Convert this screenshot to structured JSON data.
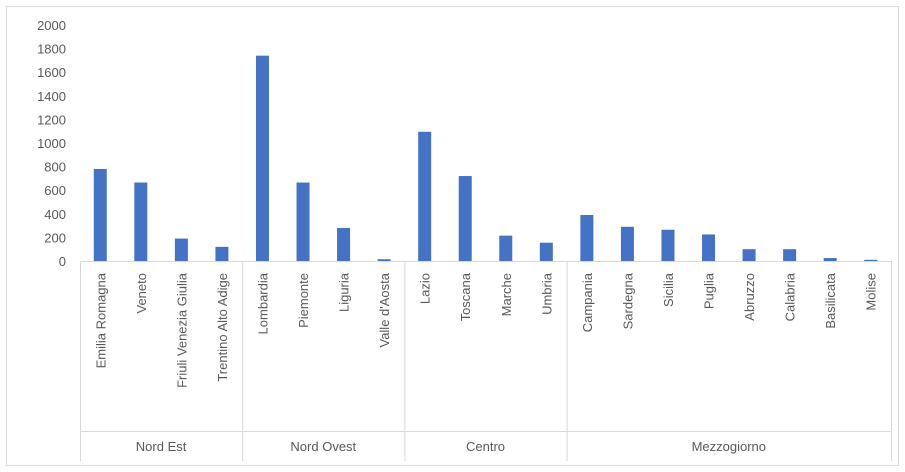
{
  "chart_data": {
    "type": "bar",
    "title": "",
    "xlabel": "",
    "ylabel": "",
    "ylim": [
      0,
      2000
    ],
    "yticks": [
      0,
      200,
      400,
      600,
      800,
      1000,
      1200,
      1400,
      1600,
      1800,
      2000
    ],
    "grid": false,
    "legend": "none",
    "bar_color": "#4472C4",
    "groups": [
      {
        "label": "Nord Est",
        "categories": [
          "Emilia Romagna",
          "Veneto",
          "Friuli Venezia Giulia",
          "Trentino Alto Adige"
        ],
        "values": [
          780,
          665,
          190,
          120
        ]
      },
      {
        "label": "Nord Ovest",
        "categories": [
          "Lombardia",
          "Piemonte",
          "Liguria",
          "Valle d'Aosta"
        ],
        "values": [
          1740,
          665,
          280,
          15
        ]
      },
      {
        "label": "Centro",
        "categories": [
          "Lazio",
          "Toscana",
          "Marche",
          "Umbria"
        ],
        "values": [
          1095,
          720,
          215,
          155
        ]
      },
      {
        "label": "Mezzogiorno",
        "categories": [
          "Campania",
          "Sardegna",
          "Sicilia",
          "Puglia",
          "Abruzzo",
          "Calabria",
          "Basilicata",
          "Molise"
        ],
        "values": [
          390,
          290,
          265,
          225,
          100,
          100,
          25,
          10
        ]
      }
    ]
  }
}
